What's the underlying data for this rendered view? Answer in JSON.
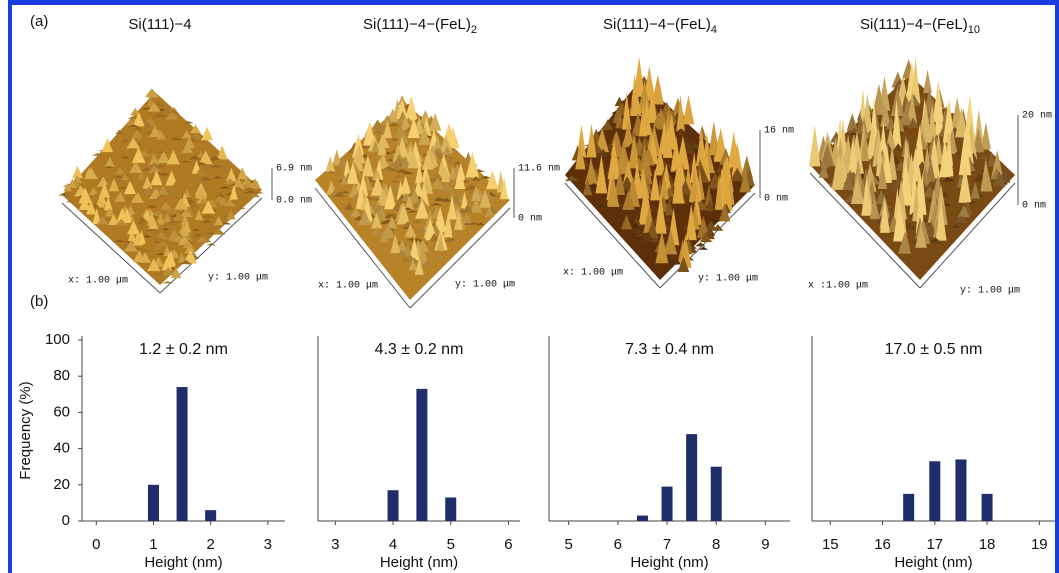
{
  "panel_a": {
    "label": "(a)",
    "images": [
      {
        "title": "Si(111)−4",
        "title_sub": "",
        "z_max": "6.9 nm",
        "z_min": "0.0 nm",
        "x_label": "x: 1.00 μm",
        "y_label": "y: 1.00 μm"
      },
      {
        "title": "Si(111)−4−(FeL)",
        "title_sub": "2",
        "z_max": "11.6 nm",
        "z_min": "0 nm",
        "x_label": "x: 1.00 μm",
        "y_label": "y: 1.00 μm"
      },
      {
        "title": "Si(111)−4−(FeL)",
        "title_sub": "4",
        "z_max": "16 nm",
        "z_min": "0 nm",
        "x_label": "x: 1.00 μm",
        "y_label": "y: 1.00 μm"
      },
      {
        "title": "Si(111)−4−(FeL)",
        "title_sub": "10",
        "z_max": "20 nm",
        "z_min": "0 nm",
        "x_label": "x :1.00 μm",
        "y_label": "y: 1.00 μm"
      }
    ]
  },
  "panel_b": {
    "label": "(b)"
  },
  "chart_data": [
    {
      "type": "bar",
      "annotation": "1.2 ± 0.2 nm",
      "x": [
        1,
        1.5,
        2
      ],
      "values": [
        20,
        74,
        6
      ],
      "color": "#1f2d6b",
      "xlim": [
        -0.25,
        3.3
      ],
      "xticks": [
        0,
        1,
        2,
        3
      ],
      "ylim": [
        0,
        100
      ],
      "yticks": [
        0,
        20,
        40,
        60,
        80,
        100
      ],
      "xlabel": "Height (nm)",
      "ylabel": "Frequency (%)"
    },
    {
      "type": "bar",
      "annotation": "4.3 ± 0.2 nm",
      "x": [
        4,
        4.5,
        5
      ],
      "values": [
        17,
        73,
        13
      ],
      "color": "#1f2d6b",
      "xlim": [
        2.7,
        6.2
      ],
      "xticks": [
        3,
        4,
        5,
        6
      ],
      "ylim": [
        0,
        100
      ],
      "xlabel": "Height (nm)"
    },
    {
      "type": "bar",
      "annotation": "7.3 ± 0.4 nm",
      "x": [
        6.5,
        7,
        7.5,
        8
      ],
      "values": [
        3,
        19,
        48,
        30
      ],
      "color": "#1f2d6b",
      "xlim": [
        4.6,
        9.5
      ],
      "xticks": [
        5,
        6,
        7,
        8,
        9
      ],
      "ylim": [
        0,
        100
      ],
      "xlabel": "Height (nm)"
    },
    {
      "type": "bar",
      "annotation": "17.0 ± 0.5 nm",
      "x": [
        16.5,
        17,
        17.5,
        18
      ],
      "values": [
        15,
        33,
        34,
        15
      ],
      "color": "#1f2d6b",
      "xlim": [
        14.65,
        19.3
      ],
      "xticks": [
        15,
        16,
        17,
        18,
        19
      ],
      "ylim": [
        0,
        100
      ],
      "xlabel": "Height (nm)"
    }
  ]
}
